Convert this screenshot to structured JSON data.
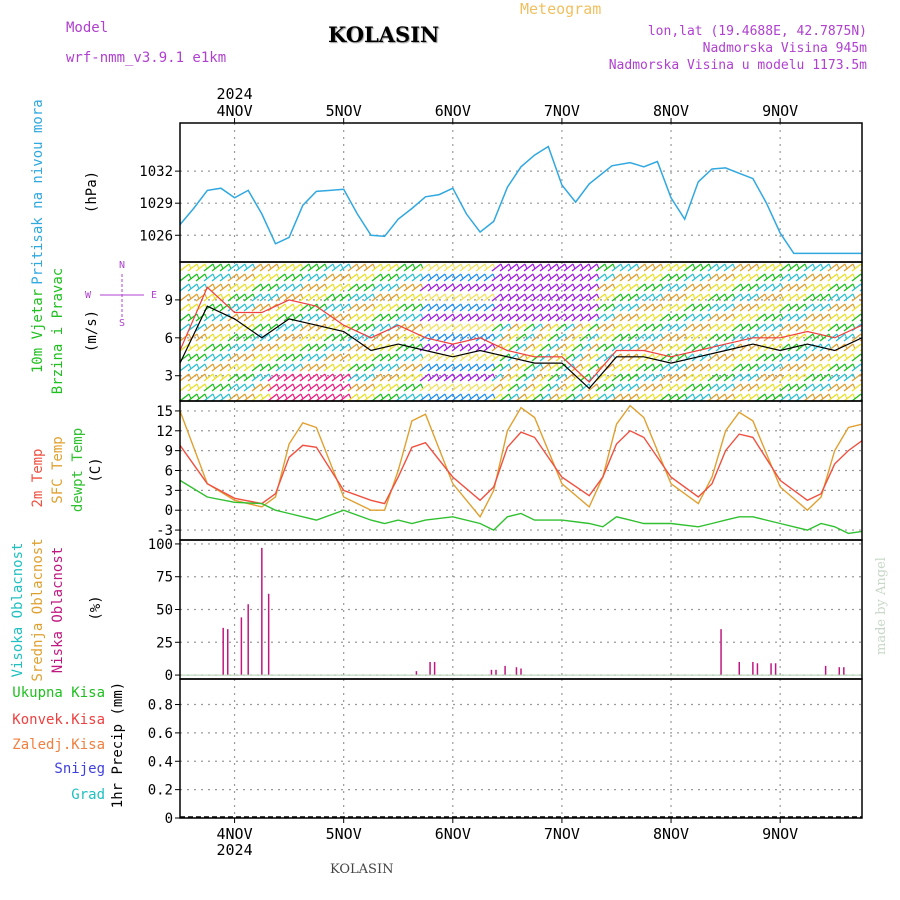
{
  "header": {
    "title": "KOLASIN",
    "subtitle": "Meteogram",
    "model_label": "Model",
    "model_name": "wrf-nmm_v3.9.1 e1km",
    "location": "lon,lat (19.4688E, 42.7875N)",
    "elevation": "Nadmorska Visina 945m",
    "model_elevation": "Nadmorska Visina u modelu 1173.5m"
  },
  "footer": {
    "station": "KOLASIN",
    "credit": "made by Angel"
  },
  "colors": {
    "pressure": "#30a8e0",
    "temp": "#f05040",
    "sfc": "#e0a030",
    "dew": "#30c030",
    "cloud": "#c01880",
    "green": "#20c020",
    "red": "#f04040",
    "orange": "#f08040",
    "blue": "#4040e0",
    "teal": "#20c0c0",
    "purple": "#b040d0"
  },
  "chart_data": [
    {
      "type": "line",
      "name": "pressure",
      "ylabel": [
        "Pritisak na nivou mora",
        "(hPa)"
      ],
      "ylim": [
        1023.5,
        1036.5
      ],
      "yticks": [
        1026,
        1029,
        1032
      ],
      "x_hours": [
        0,
        3,
        6,
        9,
        12,
        15,
        18,
        21,
        24,
        27,
        30,
        33,
        36,
        39,
        42,
        45,
        48,
        51,
        54,
        57,
        60,
        63,
        66,
        69,
        72,
        75,
        78,
        81,
        84,
        87,
        90,
        95,
        99,
        102,
        105,
        108,
        111,
        114,
        117,
        120,
        123,
        126,
        129,
        132,
        135,
        138,
        141,
        144,
        147,
        150
      ],
      "values": [
        1027.0,
        1028.5,
        1030.2,
        1030.4,
        1029.5,
        1030.2,
        1028.0,
        1025.2,
        1025.8,
        1028.8,
        1030.1,
        1030.2,
        1030.3,
        1028.0,
        1026.0,
        1025.9,
        1027.5,
        1028.5,
        1029.6,
        1029.8,
        1030.4,
        1028.0,
        1026.3,
        1027.3,
        1030.5,
        1032.4,
        1033.5,
        1034.3,
        1030.7,
        1029.1,
        1030.8,
        1032.5,
        1032.8,
        1032.4,
        1032.9,
        1029.5,
        1027.5,
        1031.0,
        1032.2,
        1032.3,
        1031.8,
        1031.3,
        1029.0,
        1026.2,
        1024.3,
        1024.3,
        1024.3,
        1024.3,
        1024.3,
        1024.3
      ]
    },
    {
      "type": "line",
      "name": "wind",
      "ylabel": [
        "10m Vjetar",
        "Brzina i Pravac",
        "(m/s)"
      ],
      "compass": [
        "N",
        "W",
        "E",
        "S"
      ],
      "ylim": [
        1,
        12
      ],
      "yticks": [
        3,
        6,
        9
      ],
      "series": [
        {
          "name": "speed",
          "x_hours": [
            0,
            6,
            12,
            18,
            24,
            30,
            36,
            42,
            48,
            54,
            60,
            66,
            72,
            78,
            84,
            90,
            96,
            102,
            108,
            114,
            120,
            126,
            132,
            138,
            144,
            150
          ],
          "values": [
            4,
            8.5,
            7.5,
            6,
            7.5,
            7,
            6.5,
            5,
            5.5,
            5,
            4.5,
            5,
            4.5,
            4,
            4,
            2,
            4.5,
            4.5,
            4,
            4.5,
            5,
            5.5,
            5,
            5.5,
            5,
            6
          ]
        },
        {
          "name": "gust",
          "x_hours": [
            0,
            6,
            12,
            18,
            24,
            30,
            36,
            42,
            48,
            54,
            60,
            66,
            72,
            78,
            84,
            90,
            96,
            102,
            108,
            114,
            120,
            126,
            132,
            138,
            144,
            150
          ],
          "values": [
            5,
            10,
            8,
            8,
            9,
            8.5,
            7,
            6,
            7,
            6,
            5.5,
            6,
            5,
            4.5,
            4.5,
            2.5,
            5,
            5,
            4.5,
            5,
            5.5,
            6,
            6,
            6.5,
            6,
            7
          ]
        }
      ]
    },
    {
      "type": "line",
      "name": "temperature",
      "ylabel": [
        "2m Temp",
        "SFC Temp",
        "dewpt Temp",
        "(C)"
      ],
      "ylim": [
        -4.5,
        16.5
      ],
      "yticks": [
        -3,
        0,
        3,
        6,
        9,
        12,
        15
      ],
      "series": [
        {
          "name": "2m Temp",
          "x_hours": [
            0,
            6,
            12,
            18,
            21,
            24,
            27,
            30,
            36,
            42,
            45,
            48,
            51,
            54,
            60,
            66,
            69,
            72,
            75,
            78,
            84,
            90,
            93,
            96,
            99,
            102,
            108,
            114,
            117,
            120,
            123,
            126,
            132,
            138,
            141,
            144,
            147,
            150
          ],
          "values": [
            9.8,
            4,
            1.8,
            1,
            2.5,
            8,
            9.8,
            9.5,
            3,
            1.5,
            1,
            5,
            9.5,
            10.2,
            5,
            1.5,
            3.5,
            9.5,
            11.8,
            11,
            5,
            2.2,
            5,
            10,
            12,
            11,
            5,
            2,
            4,
            9,
            11.5,
            11,
            4.5,
            1.5,
            2.5,
            7,
            9,
            10.5
          ]
        },
        {
          "name": "SFC Temp",
          "x_hours": [
            0,
            6,
            12,
            18,
            21,
            24,
            27,
            30,
            36,
            42,
            45,
            48,
            51,
            54,
            60,
            66,
            69,
            72,
            75,
            78,
            84,
            90,
            93,
            96,
            99,
            102,
            108,
            114,
            117,
            120,
            123,
            126,
            132,
            138,
            141,
            144,
            147,
            150
          ],
          "values": [
            15,
            4,
            1.5,
            0.5,
            2,
            10,
            13.2,
            12.5,
            2,
            0,
            0,
            6,
            13.5,
            14.5,
            4,
            -1,
            3,
            12,
            15.5,
            14,
            4,
            0.5,
            5,
            13,
            15.8,
            14,
            4,
            1,
            5,
            12,
            14.8,
            13.5,
            3.5,
            0,
            2,
            9,
            12.5,
            13
          ]
        },
        {
          "name": "dewpt Temp",
          "x_hours": [
            0,
            6,
            12,
            18,
            21,
            24,
            27,
            30,
            36,
            42,
            45,
            48,
            51,
            54,
            60,
            66,
            69,
            72,
            75,
            78,
            84,
            90,
            93,
            96,
            99,
            102,
            108,
            114,
            117,
            120,
            123,
            126,
            132,
            138,
            141,
            144,
            147,
            150
          ],
          "values": [
            4.5,
            2,
            1.2,
            1,
            0,
            -0.5,
            -1,
            -1.5,
            0,
            -1.5,
            -2,
            -1.5,
            -2,
            -1.5,
            -1,
            -2,
            -3,
            -1,
            -0.5,
            -1.5,
            -1.5,
            -2,
            -2.5,
            -1,
            -1.5,
            -2,
            -2,
            -2.5,
            -2,
            -1.5,
            -1,
            -1,
            -2,
            -3,
            -2,
            -2.5,
            -3.5,
            -3.2
          ]
        }
      ]
    },
    {
      "type": "bar",
      "name": "cloud",
      "ylabel": [
        "Visoka Oblacnost",
        "Srednja Oblacnost",
        "Niska Oblacnost",
        "(%)"
      ],
      "ylim": [
        -3,
        103
      ],
      "yticks": [
        0,
        25,
        50,
        75,
        100
      ],
      "x_hours": [
        9.5,
        10.5,
        13.5,
        15,
        18,
        19.5,
        52,
        55,
        56,
        68.5,
        69.5,
        71.5,
        74,
        75,
        119,
        123,
        126,
        127,
        130,
        131,
        142,
        145,
        146
      ],
      "values": [
        36,
        35,
        44,
        54,
        97,
        62,
        3,
        10,
        10,
        4,
        4,
        7,
        6,
        5,
        35,
        10,
        10,
        9,
        9,
        9,
        7,
        6,
        6
      ]
    },
    {
      "type": "bar",
      "name": "precip",
      "ylabel": [
        "1hr Precip (mm)"
      ],
      "legend": [
        "Ukupna Kisa",
        "Konvek.Kisa",
        "Zaledj.Kisa",
        "Snijeg",
        "Grad"
      ],
      "ylim": [
        0,
        0.98
      ],
      "yticks": [
        0,
        0.2,
        0.4,
        0.6,
        0.8
      ],
      "ytick_labels": [
        "0",
        "0.2",
        "0.4",
        "0.6",
        "0.8"
      ],
      "x_hours": [],
      "values": []
    }
  ],
  "axis": {
    "x_min_hours": 0,
    "x_max_hours": 150,
    "day_hours": [
      12,
      36,
      60,
      84,
      108,
      132
    ],
    "day_labels": [
      "4NOV",
      "5NOV",
      "6NOV",
      "7NOV",
      "8NOV",
      "9NOV"
    ],
    "year": "2024"
  }
}
